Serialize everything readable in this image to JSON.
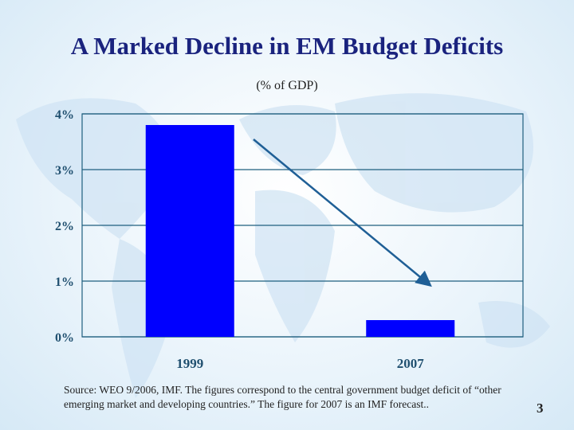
{
  "slide": {
    "title": "A Marked Decline in EM Budget Deficits",
    "subtitle": "(% of GDP)",
    "source": "Source:  WEO 9/2006, IMF.  The figures correspond to the central government budget deficit of  “other emerging market and developing countries.”  The figure for 2007 is an IMF forecast..",
    "page_number": "3"
  },
  "chart_data": {
    "type": "bar",
    "categories": [
      "1999",
      "2007"
    ],
    "values": [
      3.8,
      0.3
    ],
    "ylim": [
      0,
      4
    ],
    "yticks": [
      "0%",
      "1%",
      "2%",
      "3%",
      "4%"
    ],
    "grid": true,
    "bar_color": "#0000ff",
    "annotation": "downward arrow from 1999 bar to 2007 bar",
    "xlabel": "",
    "ylabel": ""
  }
}
